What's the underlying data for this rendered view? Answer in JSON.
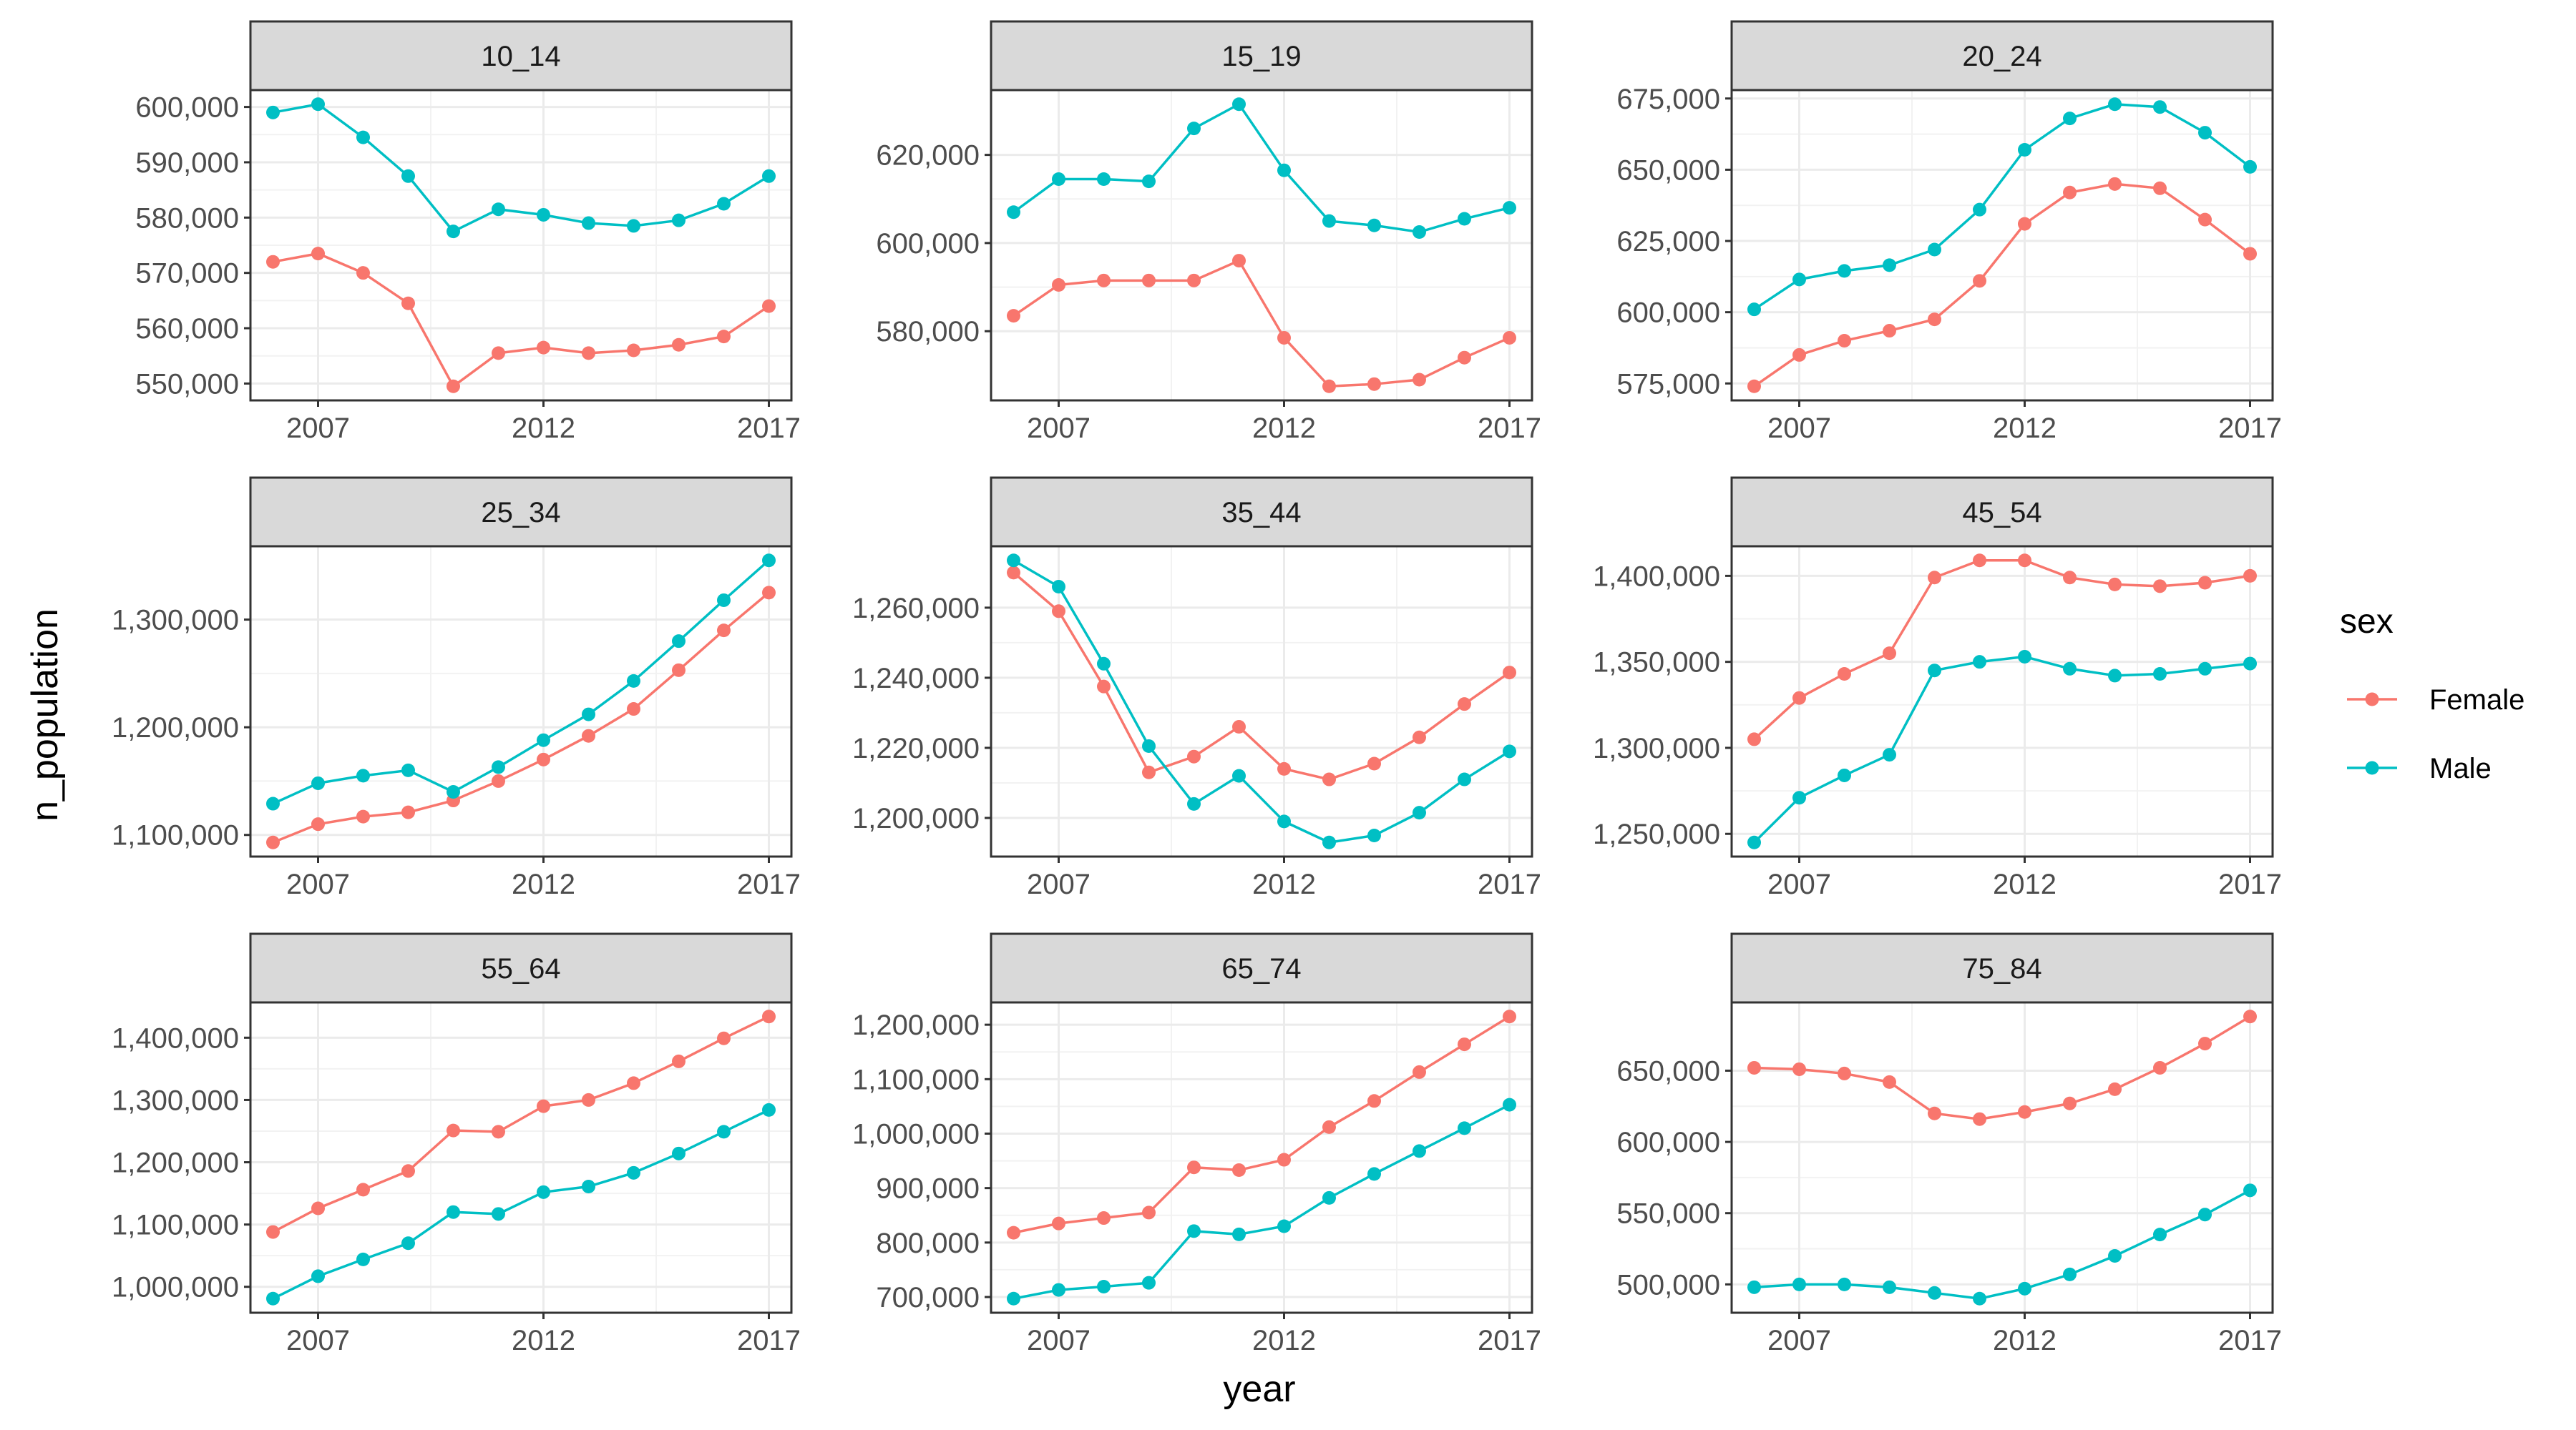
{
  "chart_data": {
    "type": "line",
    "facet_by": "age group",
    "xlabel": "year",
    "ylabel": "n_population",
    "x_ticks": [
      2007,
      2012,
      2017
    ],
    "grid": true,
    "legend": {
      "title": "sex",
      "position": "right",
      "entries": [
        {
          "name": "Female",
          "color": "#F8766D"
        },
        {
          "name": "Male",
          "color": "#00BFC4"
        }
      ]
    },
    "x": [
      2006,
      2007,
      2008,
      2009,
      2010,
      2011,
      2012,
      2013,
      2014,
      2015,
      2016,
      2017
    ],
    "panels": [
      {
        "title": "10_14",
        "yticks": [
          550000,
          560000,
          570000,
          580000,
          590000,
          600000
        ],
        "series": [
          {
            "name": "Female",
            "values": [
              572000,
              573500,
              570000,
              564500,
              549500,
              555500,
              556500,
              555500,
              556000,
              557000,
              558500,
              564000
            ]
          },
          {
            "name": "Male",
            "values": [
              599000,
              600500,
              594500,
              587500,
              577500,
              581500,
              580500,
              579000,
              578500,
              579500,
              582500,
              587500
            ]
          }
        ]
      },
      {
        "title": "15_19",
        "yticks": [
          580000,
          600000,
          620000
        ],
        "series": [
          {
            "name": "Female",
            "values": [
              583500,
              590500,
              591500,
              591500,
              591500,
              596000,
              578500,
              567500,
              568000,
              569000,
              574000,
              578500
            ]
          },
          {
            "name": "Male",
            "values": [
              607000,
              614500,
              614500,
              614000,
              626000,
              631500,
              616500,
              605000,
              604000,
              602500,
              605500,
              608000
            ]
          }
        ]
      },
      {
        "title": "20_24",
        "yticks": [
          575000,
          600000,
          625000,
          650000,
          675000
        ],
        "series": [
          {
            "name": "Female",
            "values": [
              574000,
              585000,
              590000,
              593500,
              597500,
              611000,
              631000,
              642000,
              645000,
              643500,
              632500,
              620500
            ]
          },
          {
            "name": "Male",
            "values": [
              601000,
              611500,
              614500,
              616500,
              622000,
              636000,
              657000,
              668000,
              673000,
              672000,
              663000,
              651000
            ]
          }
        ]
      },
      {
        "title": "25_34",
        "yticks": [
          1100000,
          1200000,
          1300000
        ],
        "series": [
          {
            "name": "Female",
            "values": [
              1093000,
              1110000,
              1117000,
              1121000,
              1132000,
              1150000,
              1170000,
              1192000,
              1217000,
              1253000,
              1290000,
              1325000
            ]
          },
          {
            "name": "Male",
            "values": [
              1129000,
              1148000,
              1155000,
              1160000,
              1140000,
              1163000,
              1188000,
              1212000,
              1243000,
              1280000,
              1318000,
              1355000
            ]
          }
        ]
      },
      {
        "title": "35_44",
        "yticks": [
          1200000,
          1220000,
          1240000,
          1260000
        ],
        "series": [
          {
            "name": "Female",
            "values": [
              1270000,
              1259000,
              1237500,
              1213000,
              1217500,
              1226000,
              1214000,
              1211000,
              1215500,
              1223000,
              1232500,
              1241500
            ]
          },
          {
            "name": "Male",
            "values": [
              1273500,
              1266000,
              1244000,
              1220500,
              1204000,
              1212000,
              1199000,
              1193000,
              1195000,
              1201500,
              1211000,
              1219000
            ]
          }
        ]
      },
      {
        "title": "45_54",
        "yticks": [
          1250000,
          1300000,
          1350000,
          1400000
        ],
        "series": [
          {
            "name": "Female",
            "values": [
              1305000,
              1329000,
              1343000,
              1355000,
              1399000,
              1409000,
              1409000,
              1399000,
              1395000,
              1394000,
              1396000,
              1400000
            ]
          },
          {
            "name": "Male",
            "values": [
              1245000,
              1271000,
              1284000,
              1296000,
              1345000,
              1350000,
              1353000,
              1346000,
              1342000,
              1343000,
              1346000,
              1349000
            ]
          }
        ]
      },
      {
        "title": "55_64",
        "yticks": [
          1000000,
          1100000,
          1200000,
          1300000,
          1400000
        ],
        "series": [
          {
            "name": "Female",
            "values": [
              1088000,
              1126000,
              1156000,
              1186000,
              1251000,
              1249000,
              1290000,
              1300000,
              1327000,
              1362000,
              1399000,
              1434000
            ]
          },
          {
            "name": "Male",
            "values": [
              981000,
              1017000,
              1044000,
              1070000,
              1120000,
              1117000,
              1152000,
              1161000,
              1183000,
              1214000,
              1249000,
              1284000
            ]
          }
        ]
      },
      {
        "title": "65_74",
        "yticks": [
          700000,
          800000,
          900000,
          1000000,
          1100000,
          1200000
        ],
        "series": [
          {
            "name": "Female",
            "values": [
              818000,
              835000,
              845000,
              855000,
              938000,
              933000,
              952000,
              1012000,
              1060000,
              1113000,
              1164000,
              1215000
            ]
          },
          {
            "name": "Male",
            "values": [
              697000,
              713000,
              719000,
              726000,
              821000,
              815000,
              830000,
              882000,
              926000,
              968000,
              1010000,
              1053000
            ]
          }
        ]
      },
      {
        "title": "75_84",
        "yticks": [
          500000,
          550000,
          600000,
          650000
        ],
        "series": [
          {
            "name": "Female",
            "values": [
              652000,
              651000,
              648000,
              642000,
              620000,
              616000,
              621000,
              627000,
              637000,
              652000,
              669000,
              688000
            ]
          },
          {
            "name": "Male",
            "values": [
              498000,
              500000,
              500000,
              498000,
              494000,
              490000,
              497000,
              507000,
              520000,
              535000,
              549000,
              566000
            ]
          }
        ]
      }
    ]
  }
}
